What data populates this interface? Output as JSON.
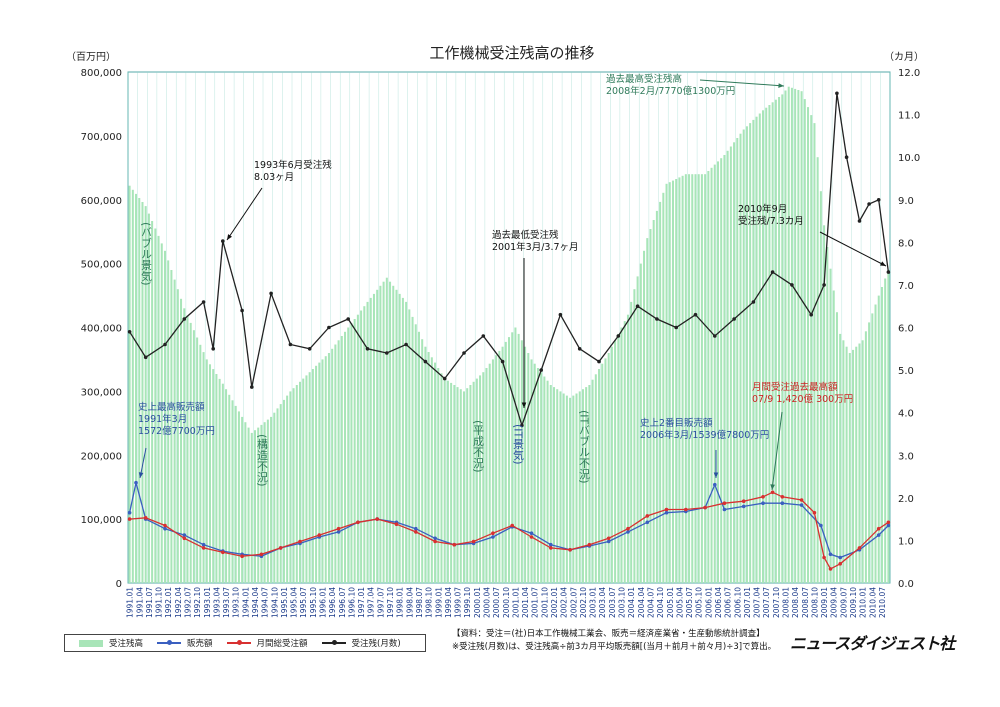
{
  "chart_data": {
    "type": "bar+line",
    "title": "工作機械受注残高の推移",
    "y_left_unit": "（百万円）",
    "y_right_unit": "（カ月）",
    "y_left_ticks": [
      "800,000",
      "700,000",
      "600,000",
      "500,000",
      "400,000",
      "300,000",
      "200,000",
      "100,000",
      "0"
    ],
    "y_right_ticks": [
      "12.0",
      "11.0",
      "10.0",
      "9.0",
      "8.0",
      "7.0",
      "6.0",
      "5.0",
      "4.0",
      "3.0",
      "2.0",
      "1.0",
      "0.0"
    ],
    "ylim_left": [
      0,
      800000
    ],
    "ylim_right": [
      0,
      12
    ],
    "x_start": "1991.01",
    "x_tick_labels": [
      "1991.01",
      "1991.04",
      "1991.07",
      "1991.10",
      "1992.01",
      "1992.04",
      "1992.07",
      "1992.10",
      "1993.01",
      "1993.04",
      "1993.07",
      "1993.10",
      "1994.01",
      "1994.04",
      "1994.07",
      "1994.10",
      "1995.01",
      "1995.04",
      "1995.07",
      "1995.10",
      "1996.01",
      "1996.04",
      "1996.07",
      "1996.10",
      "1997.01",
      "1997.04",
      "1997.07",
      "1997.10",
      "1998.01",
      "1998.04",
      "1998.07",
      "1998.10",
      "1999.01",
      "1999.04",
      "1999.07",
      "1999.10",
      "2000.01",
      "2000.04",
      "2000.07",
      "2000.10",
      "2001.01",
      "2001.04",
      "2001.07",
      "2001.10",
      "2002.01",
      "2002.04",
      "2002.07",
      "2002.10",
      "2003.01",
      "2003.04",
      "2003.07",
      "2003.10",
      "2004.01",
      "2004.04",
      "2004.07",
      "2004.10",
      "2005.01",
      "2005.04",
      "2005.07",
      "2005.10",
      "2006.01",
      "2006.04",
      "2006.07",
      "2006.10",
      "2007.01",
      "2007.04",
      "2007.07",
      "2007.10",
      "2008.01",
      "2008.04",
      "2008.07",
      "2008.10",
      "2009.01",
      "2009.04",
      "2009.07",
      "2009.10",
      "2010.01",
      "2010.04",
      "2010.07"
    ],
    "series": [
      {
        "name": "受注残高",
        "axis": "left",
        "style": "bar",
        "points": [
          [
            "1991.01",
            622000
          ],
          [
            "1991.06",
            590000
          ],
          [
            "1991.12",
            520000
          ],
          [
            "1992.06",
            430000
          ],
          [
            "1993.01",
            350000
          ],
          [
            "1993.06",
            312000
          ],
          [
            "1993.12",
            260000
          ],
          [
            "1994.03",
            235000
          ],
          [
            "1994.09",
            260000
          ],
          [
            "1995.03",
            300000
          ],
          [
            "1995.09",
            330000
          ],
          [
            "1996.03",
            360000
          ],
          [
            "1996.09",
            400000
          ],
          [
            "1997.03",
            440000
          ],
          [
            "1997.09",
            478000
          ],
          [
            "1998.03",
            440000
          ],
          [
            "1998.09",
            370000
          ],
          [
            "1999.03",
            320000
          ],
          [
            "1999.09",
            300000
          ],
          [
            "2000.03",
            330000
          ],
          [
            "2000.09",
            370000
          ],
          [
            "2001.01",
            400000
          ],
          [
            "2001.06",
            350000
          ],
          [
            "2001.12",
            310000
          ],
          [
            "2002.06",
            290000
          ],
          [
            "2002.12",
            310000
          ],
          [
            "2003.06",
            360000
          ],
          [
            "2003.12",
            420000
          ],
          [
            "2004.06",
            540000
          ],
          [
            "2004.12",
            625000
          ],
          [
            "2005.06",
            640000
          ],
          [
            "2005.12",
            640000
          ],
          [
            "2006.06",
            670000
          ],
          [
            "2006.12",
            710000
          ],
          [
            "2007.06",
            740000
          ],
          [
            "2007.12",
            765000
          ],
          [
            "2008.02",
            777000
          ],
          [
            "2008.06",
            770000
          ],
          [
            "2008.10",
            720000
          ],
          [
            "2009.01",
            560000
          ],
          [
            "2009.06",
            390000
          ],
          [
            "2009.09",
            360000
          ],
          [
            "2010.01",
            380000
          ],
          [
            "2010.06",
            450000
          ],
          [
            "2010.09",
            490000
          ]
        ]
      },
      {
        "name": "販売額",
        "axis": "left",
        "style": "line",
        "points": [
          [
            "1991.01",
            110000
          ],
          [
            "1991.03",
            157000
          ],
          [
            "1991.06",
            100000
          ],
          [
            "1991.12",
            85000
          ],
          [
            "1992.06",
            75000
          ],
          [
            "1992.12",
            60000
          ],
          [
            "1993.06",
            50000
          ],
          [
            "1993.12",
            45000
          ],
          [
            "1994.06",
            42000
          ],
          [
            "1994.12",
            55000
          ],
          [
            "1995.06",
            62000
          ],
          [
            "1995.12",
            72000
          ],
          [
            "1996.06",
            80000
          ],
          [
            "1996.12",
            95000
          ],
          [
            "1997.06",
            100000
          ],
          [
            "1997.12",
            95000
          ],
          [
            "1998.06",
            85000
          ],
          [
            "1998.12",
            70000
          ],
          [
            "1999.06",
            60000
          ],
          [
            "1999.12",
            62000
          ],
          [
            "2000.06",
            72000
          ],
          [
            "2000.12",
            88000
          ],
          [
            "2001.06",
            78000
          ],
          [
            "2001.12",
            60000
          ],
          [
            "2002.06",
            52000
          ],
          [
            "2002.12",
            58000
          ],
          [
            "2003.06",
            65000
          ],
          [
            "2003.12",
            80000
          ],
          [
            "2004.06",
            95000
          ],
          [
            "2004.12",
            110000
          ],
          [
            "2005.06",
            112000
          ],
          [
            "2005.12",
            118000
          ],
          [
            "2006.03",
            153900
          ],
          [
            "2006.06",
            115000
          ],
          [
            "2006.12",
            120000
          ],
          [
            "2007.06",
            125000
          ],
          [
            "2007.12",
            125000
          ],
          [
            "2008.06",
            122000
          ],
          [
            "2008.12",
            90000
          ],
          [
            "2009.03",
            45000
          ],
          [
            "2009.06",
            40000
          ],
          [
            "2009.12",
            52000
          ],
          [
            "2010.06",
            75000
          ],
          [
            "2010.09",
            90000
          ]
        ]
      },
      {
        "name": "月間総受注額",
        "axis": "left",
        "style": "line",
        "points": [
          [
            "1991.01",
            100000
          ],
          [
            "1991.06",
            102000
          ],
          [
            "1991.12",
            90000
          ],
          [
            "1992.06",
            70000
          ],
          [
            "1992.12",
            55000
          ],
          [
            "1993.06",
            48000
          ],
          [
            "1993.12",
            42000
          ],
          [
            "1994.06",
            45000
          ],
          [
            "1994.12",
            55000
          ],
          [
            "1995.06",
            65000
          ],
          [
            "1995.12",
            75000
          ],
          [
            "1996.06",
            85000
          ],
          [
            "1996.12",
            95000
          ],
          [
            "1997.06",
            100000
          ],
          [
            "1997.12",
            92000
          ],
          [
            "1998.06",
            80000
          ],
          [
            "1998.12",
            65000
          ],
          [
            "1999.06",
            60000
          ],
          [
            "1999.12",
            65000
          ],
          [
            "2000.06",
            78000
          ],
          [
            "2000.12",
            90000
          ],
          [
            "2001.06",
            72000
          ],
          [
            "2001.12",
            55000
          ],
          [
            "2002.06",
            52000
          ],
          [
            "2002.12",
            60000
          ],
          [
            "2003.06",
            70000
          ],
          [
            "2003.12",
            85000
          ],
          [
            "2004.06",
            105000
          ],
          [
            "2004.12",
            115000
          ],
          [
            "2005.06",
            115000
          ],
          [
            "2005.12",
            118000
          ],
          [
            "2006.06",
            125000
          ],
          [
            "2006.12",
            128000
          ],
          [
            "2007.06",
            135000
          ],
          [
            "2007.09",
            142000
          ],
          [
            "2007.12",
            135000
          ],
          [
            "2008.06",
            130000
          ],
          [
            "2008.10",
            110000
          ],
          [
            "2009.01",
            40000
          ],
          [
            "2009.03",
            22000
          ],
          [
            "2009.06",
            30000
          ],
          [
            "2009.12",
            55000
          ],
          [
            "2010.06",
            85000
          ],
          [
            "2010.09",
            95000
          ]
        ]
      },
      {
        "name": "受注残(月数)",
        "axis": "right",
        "style": "line",
        "points": [
          [
            "1991.01",
            5.9
          ],
          [
            "1991.06",
            5.3
          ],
          [
            "1991.12",
            5.6
          ],
          [
            "1992.06",
            6.2
          ],
          [
            "1992.12",
            6.6
          ],
          [
            "1993.03",
            5.5
          ],
          [
            "1993.06",
            8.03
          ],
          [
            "1993.12",
            6.4
          ],
          [
            "1994.03",
            4.6
          ],
          [
            "1994.09",
            6.8
          ],
          [
            "1995.03",
            5.6
          ],
          [
            "1995.09",
            5.5
          ],
          [
            "1996.03",
            6.0
          ],
          [
            "1996.09",
            6.2
          ],
          [
            "1997.03",
            5.5
          ],
          [
            "1997.09",
            5.4
          ],
          [
            "1998.03",
            5.6
          ],
          [
            "1998.09",
            5.2
          ],
          [
            "1999.03",
            4.8
          ],
          [
            "1999.09",
            5.4
          ],
          [
            "2000.03",
            5.8
          ],
          [
            "2000.09",
            5.2
          ],
          [
            "2001.03",
            3.7
          ],
          [
            "2001.09",
            5.0
          ],
          [
            "2002.03",
            6.3
          ],
          [
            "2002.09",
            5.5
          ],
          [
            "2003.03",
            5.2
          ],
          [
            "2003.09",
            5.8
          ],
          [
            "2004.03",
            6.5
          ],
          [
            "2004.09",
            6.2
          ],
          [
            "2005.03",
            6.0
          ],
          [
            "2005.09",
            6.3
          ],
          [
            "2006.03",
            5.8
          ],
          [
            "2006.09",
            6.2
          ],
          [
            "2007.03",
            6.6
          ],
          [
            "2007.09",
            7.3
          ],
          [
            "2008.03",
            7.0
          ],
          [
            "2008.09",
            6.3
          ],
          [
            "2009.01",
            7.0
          ],
          [
            "2009.05",
            11.5
          ],
          [
            "2009.08",
            10.0
          ],
          [
            "2009.12",
            8.5
          ],
          [
            "2010.03",
            8.9
          ],
          [
            "2010.06",
            9.0
          ],
          [
            "2010.09",
            7.3
          ]
        ]
      }
    ],
    "annotations": [
      {
        "id": "max-backlog",
        "lines": [
          "過去最高受注残高",
          "2008年2月/7770億1300万円"
        ]
      },
      {
        "id": "1993-peak",
        "lines": [
          "1993年6月受注残",
          "8.03ヶ月"
        ]
      },
      {
        "id": "min-backlog",
        "lines": [
          "過去最低受注残",
          "2001年3月/3.7ヶ月"
        ]
      },
      {
        "id": "2010-09",
        "lines": [
          "2010年9月",
          "受注残/7.3カ月"
        ]
      },
      {
        "id": "max-monthly-order",
        "lines": [
          "月間受注過去最高額",
          "07/9  1,420億 300万円"
        ]
      },
      {
        "id": "max-sales",
        "lines": [
          "史上最高販売額",
          "1991年3月",
          "1572億7700万円"
        ]
      },
      {
        "id": "second-sales",
        "lines": [
          "史上2番目販売額",
          "2006年3月/1539億7800万円"
        ]
      }
    ],
    "vertical_labels": [
      "(バブル景気)",
      "(構造不況)",
      "(平成不況)",
      "(IT景気)",
      "(ITバブル不況)"
    ],
    "legend_position": "bottom-left"
  },
  "legend": {
    "items": [
      "受注残高",
      "販売額",
      "月間総受注額",
      "受注残(月数)"
    ]
  },
  "colors": {
    "bar": "#a8e5b8",
    "sales": "#3a5fc0",
    "orders": "#d83030",
    "months": "#222222",
    "grid": "#8fd6c8"
  },
  "source": {
    "line1": "【資料：受注＝(社)日本工作機械工業会、販売＝経済産業省・生産動態統計調査】",
    "line2": "※受注残(月数)は、受注残高÷前3カ月平均販売額[(当月＋前月＋前々月)÷3]で算出。"
  },
  "brand": "ニュースダイジェスト社"
}
